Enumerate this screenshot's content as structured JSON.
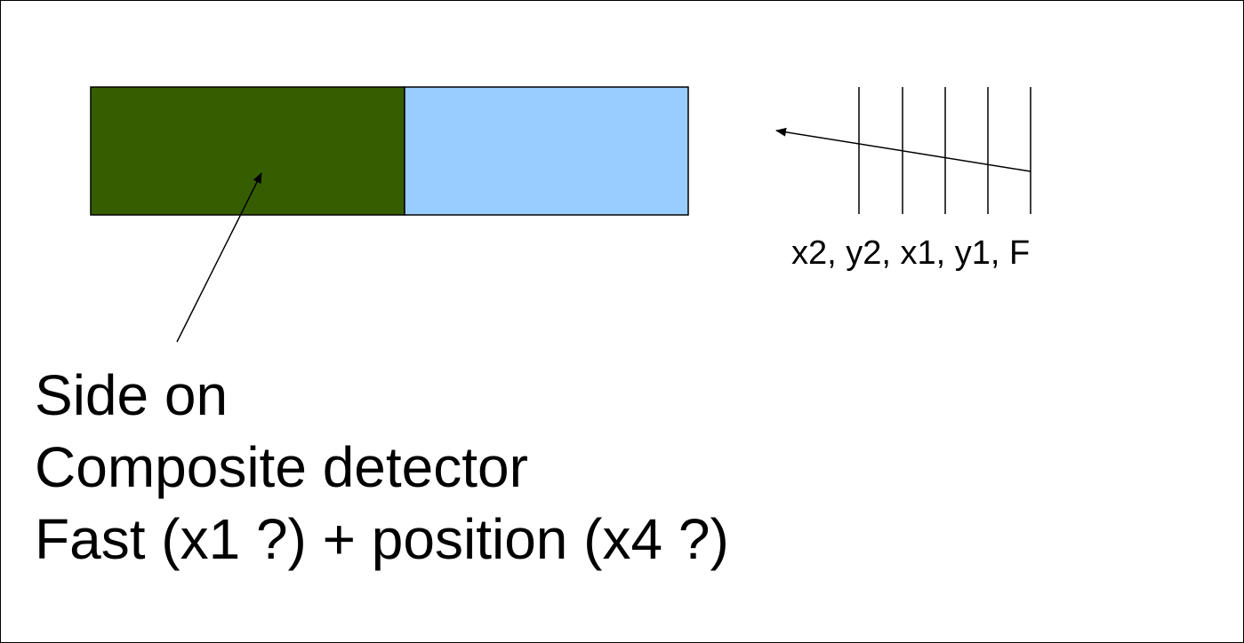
{
  "diagram": {
    "colors": {
      "fast_block": "#365e00",
      "position_block": "#99ccff",
      "outline": "#000000"
    },
    "strip_detector_label": "x2, y2, x1, y1, F",
    "description_lines": [
      "Side on",
      "Composite detector",
      "Fast (x1 ?) + position (x4 ?)"
    ]
  }
}
